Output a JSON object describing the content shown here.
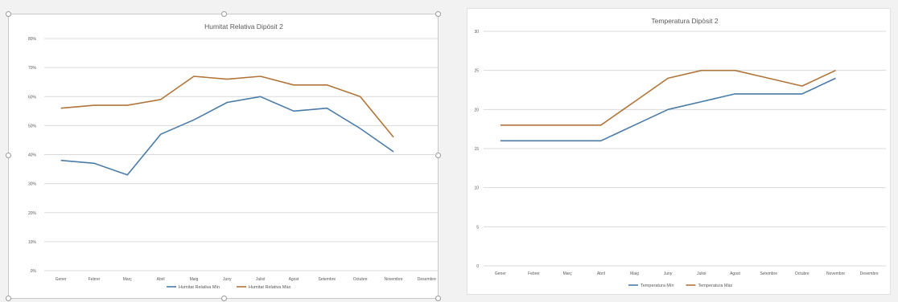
{
  "chart_data": [
    {
      "type": "line",
      "title": "Humitat Relativa Dipòsit 2",
      "categories": [
        "Gener",
        "Febrer",
        "Març",
        "Abril",
        "Maig",
        "Juny",
        "Juliol",
        "Agost",
        "Setembre",
        "Octubre",
        "Novembre",
        "Desembre"
      ],
      "yticks": [
        "0%",
        "10%",
        "20%",
        "30%",
        "40%",
        "50%",
        "60%",
        "70%",
        "80%"
      ],
      "ylim": [
        0,
        80
      ],
      "grid": true,
      "legend_position": "bottom",
      "series": [
        {
          "name": "Humitat Relativa Mín",
          "color": "#4a7ba7",
          "values": [
            38,
            37,
            33,
            47,
            52,
            58,
            60,
            55,
            56,
            49,
            41,
            null
          ]
        },
        {
          "name": "Humitat Relativa Màx",
          "color": "#b0753a",
          "values": [
            56,
            57,
            57,
            59,
            67,
            66,
            67,
            64,
            64,
            60,
            46,
            null
          ]
        }
      ]
    },
    {
      "type": "line",
      "title": "Temperatura Dipòsit 2",
      "categories": [
        "Gener",
        "Febrer",
        "Març",
        "Abril",
        "Maig",
        "Juny",
        "Juliol",
        "Agost",
        "Setembre",
        "Octubre",
        "Novembre",
        "Desembre"
      ],
      "yticks": [
        "0",
        "5",
        "10",
        "15",
        "20",
        "25",
        "30"
      ],
      "ylim": [
        0,
        30
      ],
      "grid": true,
      "legend_position": "bottom",
      "series": [
        {
          "name": "Temperatura Mín",
          "color": "#4a7ba7",
          "values": [
            16,
            16,
            16,
            16,
            18,
            20,
            21,
            22,
            22,
            22,
            24,
            null
          ]
        },
        {
          "name": "Temperatura Màx",
          "color": "#b0753a",
          "values": [
            18,
            18,
            18,
            18,
            21,
            24,
            25,
            25,
            24,
            23,
            25,
            null
          ]
        }
      ]
    }
  ]
}
